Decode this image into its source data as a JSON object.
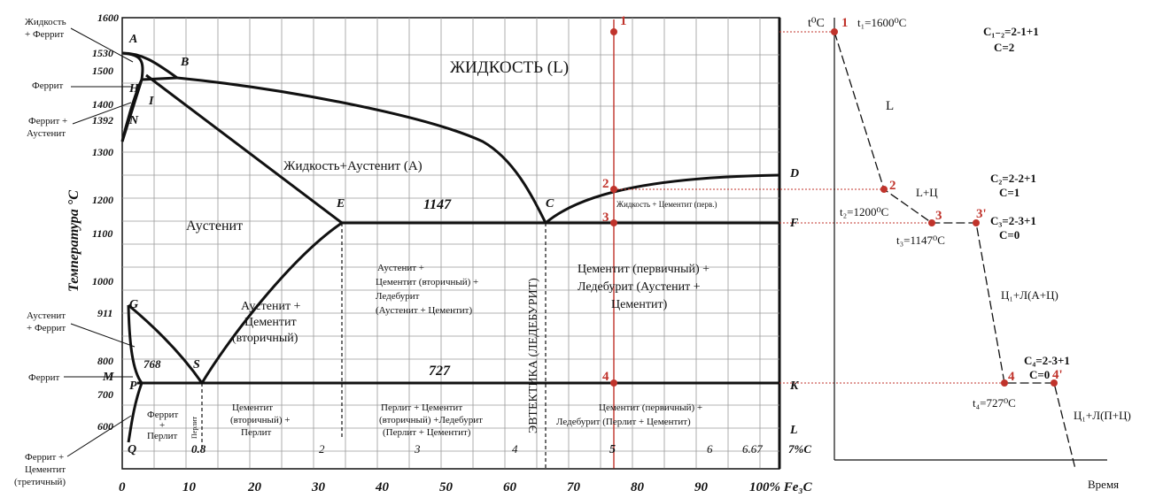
{
  "diagram": {
    "y_axis_title": "Температура °С",
    "y_ticks": [
      "1600",
      "1530",
      "1500",
      "1400",
      "1392",
      "1300",
      "1200",
      "1100",
      "1000",
      "911",
      "800",
      "700",
      "600"
    ],
    "x_ticks_pct": [
      "0",
      "10",
      "20",
      "30",
      "40",
      "50",
      "60",
      "70",
      "80",
      "90",
      "100% Fe₃C"
    ],
    "x_ticks_carbon": [
      "0.8",
      "2",
      "3",
      "4",
      "5",
      "6",
      "6.67",
      "7%С"
    ],
    "points": {
      "A": "A",
      "B": "B",
      "H": "H",
      "I": "I",
      "N": "N",
      "E": "E",
      "C": "C",
      "D": "D",
      "F": "F",
      "G": "G",
      "S": "S",
      "P": "P",
      "M": "M",
      "Q": "Q",
      "K": "K",
      "L": "L"
    },
    "line_values": {
      "t1147": "1147",
      "t727": "727",
      "t768": "768"
    },
    "markers": {
      "m1": "1",
      "m2": "2",
      "m3": "3",
      "m4": "4"
    },
    "regions": {
      "liquid": "ЖИДКОСТЬ (L)",
      "liquid_austenite": "Жидкость+Аустенит (А)",
      "austenite": "Аустенит",
      "liquid_cementite": "Жидкость + Цементит (перв.)",
      "aus_cem_line1": "Аустенит +",
      "aus_cem_line2": "Цементит",
      "aus_cem_line3": "(вторичный)",
      "aus_ledeb_line1": "Аустенит +",
      "aus_ledeb_line2": "Цементит (вторичный) +",
      "aus_ledeb_line3": "Ледебурит",
      "aus_ledeb_line4": "(Аустенит + Цементит)",
      "eutectic": "ЭВТЕКТИКА (ЛЕДЕБУРИТ)",
      "cem_ledeb_line1": "Цементит (первичный) +",
      "cem_ledeb_line2": "Ледебурит (Аустенит +",
      "cem_ledeb_line3": "Цементит)",
      "ferrite_pearlite_line1": "Феррит",
      "ferrite_pearlite_line2": "+",
      "ferrite_pearlite_line3": "Перлит",
      "pearlite": "Перлит",
      "cem_pearlite_line1": "Цементит",
      "cem_pearlite_line2": "(вторичный) +",
      "cem_pearlite_line3": "Перлит",
      "pearlite_ledeb_line1": "Перлит + Цементит",
      "pearlite_ledeb_line2": "(вторичный) +Ледебурит",
      "pearlite_ledeb_line3": "(Перлит + Цементит)",
      "cem_ledeb_low_line1": "Цементит (первичный) +",
      "cem_ledeb_low_line2": "Ледебурит (Перлит + Цементит)"
    },
    "side_labels": {
      "liquid_ferrite_1": "Жидкость",
      "liquid_ferrite_2": "+ Феррит",
      "ferrite_top": "Феррит",
      "ferrite_austenite_1": "Феррит +",
      "ferrite_austenite_2": "Аустенит",
      "austenite_ferrite_1": "Аустенит",
      "austenite_ferrite_2": "+ Феррит",
      "ferrite_bottom": "Феррит",
      "ferrite_cementite_1": "Феррит +",
      "ferrite_cementite_2": "Цементит",
      "ferrite_cementite_3": "(третичный)"
    }
  },
  "cooling_curve": {
    "axis_y": "t⁰С",
    "axis_x": "Время",
    "points": {
      "p1": "1",
      "p2": "2",
      "p3": "3",
      "p3p": "3'",
      "p4": "4",
      "p4p": "4'"
    },
    "temps": {
      "t1": "t₁=1600⁰С",
      "t2": "t₂=1200⁰С",
      "t3": "t₃=1147⁰С",
      "t4": "t₄=727⁰С"
    },
    "segments": {
      "L": "L",
      "LC": "L+Ц",
      "CL_AC": "Ц₁+Л(А+Ц)",
      "CL_PC": "Ц₁+Л(П+Ц)"
    },
    "rules": [
      {
        "c": "С₁₋₂=2-1+1",
        "v": "С=2"
      },
      {
        "c": "С₂=2-2+1",
        "v": "С=1"
      },
      {
        "c": "С₃=2-3+1",
        "v": "С=0"
      },
      {
        "c": "С₄=2-3+1",
        "v": "С=0"
      }
    ]
  }
}
